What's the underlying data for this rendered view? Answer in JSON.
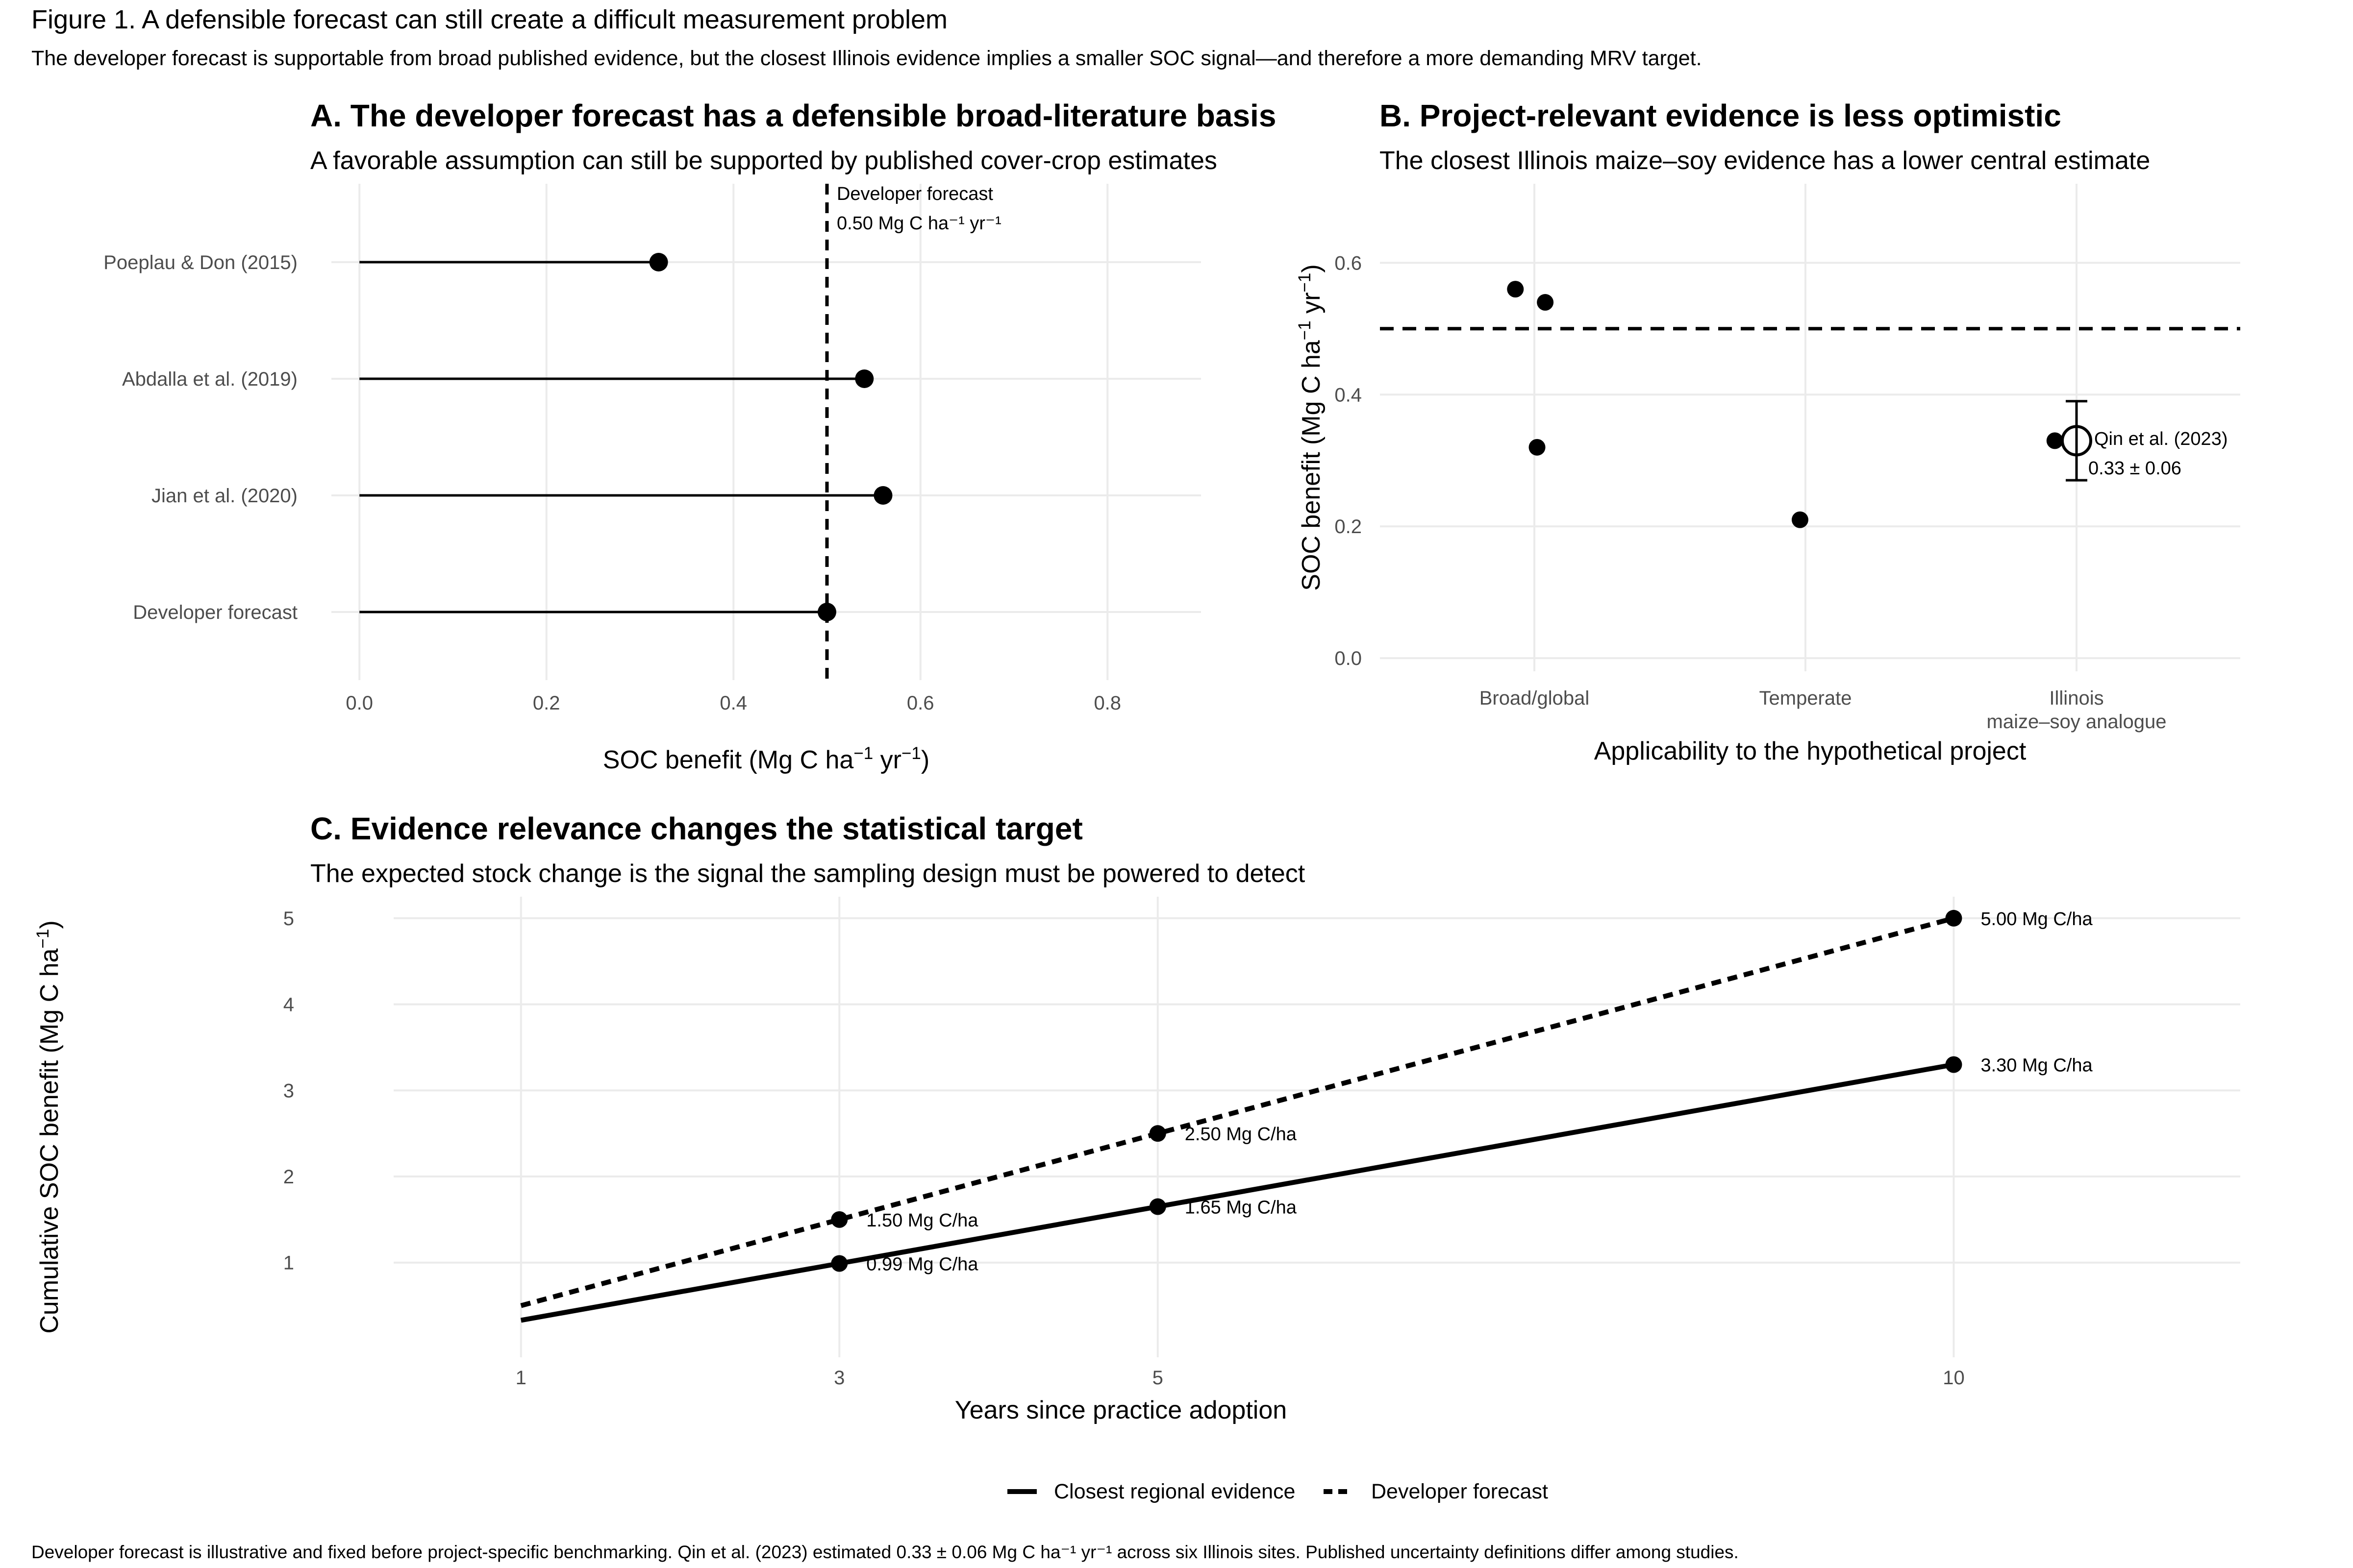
{
  "figure": {
    "title": "Figure 1. A defensible forecast can still create a difficult measurement problem",
    "subtitle": "The developer forecast is supportable from broad published evidence, but the closest Illinois evidence implies a smaller SOC signal—and therefore a more demanding MRV target.",
    "caption": "Developer forecast is illustrative and fixed before project-specific benchmarking. Qin et al. (2023) estimated 0.33 ± 0.06 Mg C ha⁻¹ yr⁻¹ across six Illinois sites. Published uncertainty definitions differ among studies."
  },
  "chart_data": [
    {
      "panel": "A",
      "type": "lollipop",
      "title": "A. The developer forecast has a defensible broad-literature basis",
      "subtitle": "A favorable assumption can still be supported by published cover-crop estimates",
      "xlabel": "SOC benefit (Mg C ha⁻¹ yr⁻¹)",
      "xlabel_parts": [
        "SOC benefit (Mg C ha",
        "−1",
        " yr",
        "−1",
        ")"
      ],
      "xlim": [
        -0.03,
        0.9
      ],
      "xticks": [
        0.0,
        0.2,
        0.4,
        0.6,
        0.8
      ],
      "xtick_labels": [
        "0.0",
        "0.2",
        "0.4",
        "0.6",
        "0.8"
      ],
      "categories": [
        "Poeplau & Don (2015)",
        "Abdalla et al. (2019)",
        "Jian et al. (2020)",
        "Developer forecast"
      ],
      "values": [
        0.32,
        0.54,
        0.56,
        0.5
      ],
      "reference_line": {
        "value": 0.5,
        "style": "dashed",
        "label_line1": "Developer forecast",
        "label_line2": "0.50 Mg C ha⁻¹ yr⁻¹"
      },
      "grid": true
    },
    {
      "panel": "B",
      "type": "scatter",
      "title": "B. Project-relevant evidence is less optimistic",
      "subtitle": "The closest Illinois maize–soy evidence has a lower central estimate",
      "xlabel": "Applicability to the hypothetical project",
      "ylabel": "SOC benefit (Mg C ha⁻¹ yr⁻¹)",
      "ylabel_parts": [
        "SOC benefit (Mg C ha",
        "−1",
        " yr",
        "−1",
        ")"
      ],
      "categories": [
        "Broad/global",
        "Temperate",
        "Illinois"
      ],
      "category_sublabels": [
        "",
        "",
        "maize–soy analogue"
      ],
      "ylim": [
        -0.02,
        0.72
      ],
      "yticks": [
        0.0,
        0.2,
        0.4,
        0.6
      ],
      "ytick_labels": [
        "0.0",
        "0.2",
        "0.4",
        "0.6"
      ],
      "points": [
        {
          "category": "Broad/global",
          "offset": -0.07,
          "y": 0.56
        },
        {
          "category": "Broad/global",
          "offset": 0.04,
          "y": 0.54
        },
        {
          "category": "Broad/global",
          "offset": 0.01,
          "y": 0.32
        },
        {
          "category": "Temperate",
          "offset": -0.02,
          "y": 0.21
        },
        {
          "category": "Illinois",
          "offset": -0.08,
          "y": 0.33
        }
      ],
      "highlight": {
        "category": "Illinois",
        "y": 0.33,
        "err": 0.06,
        "label_line1": "Qin et al. (2023)",
        "label_line2": "0.33 ± 0.06"
      },
      "reference_line": {
        "value": 0.5,
        "style": "dashed"
      },
      "grid": true
    },
    {
      "panel": "C",
      "type": "line",
      "title": "C. Evidence relevance changes the statistical target",
      "subtitle": "The expected stock change is the signal the sampling design must be powered to detect",
      "xlabel": "Years since practice adoption",
      "ylabel": "Cumulative SOC benefit (Mg C ha⁻¹)",
      "ylabel_parts": [
        "Cumulative SOC benefit (Mg C ha",
        "−1",
        ")"
      ],
      "xlim": [
        0.2,
        11.8
      ],
      "ylim": [
        -0.1,
        5.25
      ],
      "xticks": [
        1,
        3,
        5,
        10
      ],
      "xtick_labels": [
        "1",
        "3",
        "5",
        "10"
      ],
      "yticks": [
        1,
        2,
        3,
        4,
        5
      ],
      "ytick_labels": [
        "1",
        "2",
        "3",
        "4",
        "5"
      ],
      "series": [
        {
          "name": "Closest regional evidence",
          "style": "solid",
          "x": [
            1,
            3,
            5,
            10
          ],
          "y": [
            0.33,
            0.99,
            1.65,
            3.3
          ],
          "marked_x": [
            3,
            5,
            10
          ],
          "labels": [
            "0.99 Mg C/ha",
            "1.65 Mg C/ha",
            "3.30 Mg C/ha"
          ]
        },
        {
          "name": "Developer forecast",
          "style": "dashed",
          "x": [
            1,
            3,
            5,
            10
          ],
          "y": [
            0.5,
            1.5,
            2.5,
            5.0
          ],
          "marked_x": [
            3,
            5,
            10
          ],
          "labels": [
            "1.50 Mg C/ha",
            "2.50 Mg C/ha",
            "5.00 Mg C/ha"
          ]
        }
      ],
      "legend_position": "bottom",
      "grid": true
    }
  ]
}
